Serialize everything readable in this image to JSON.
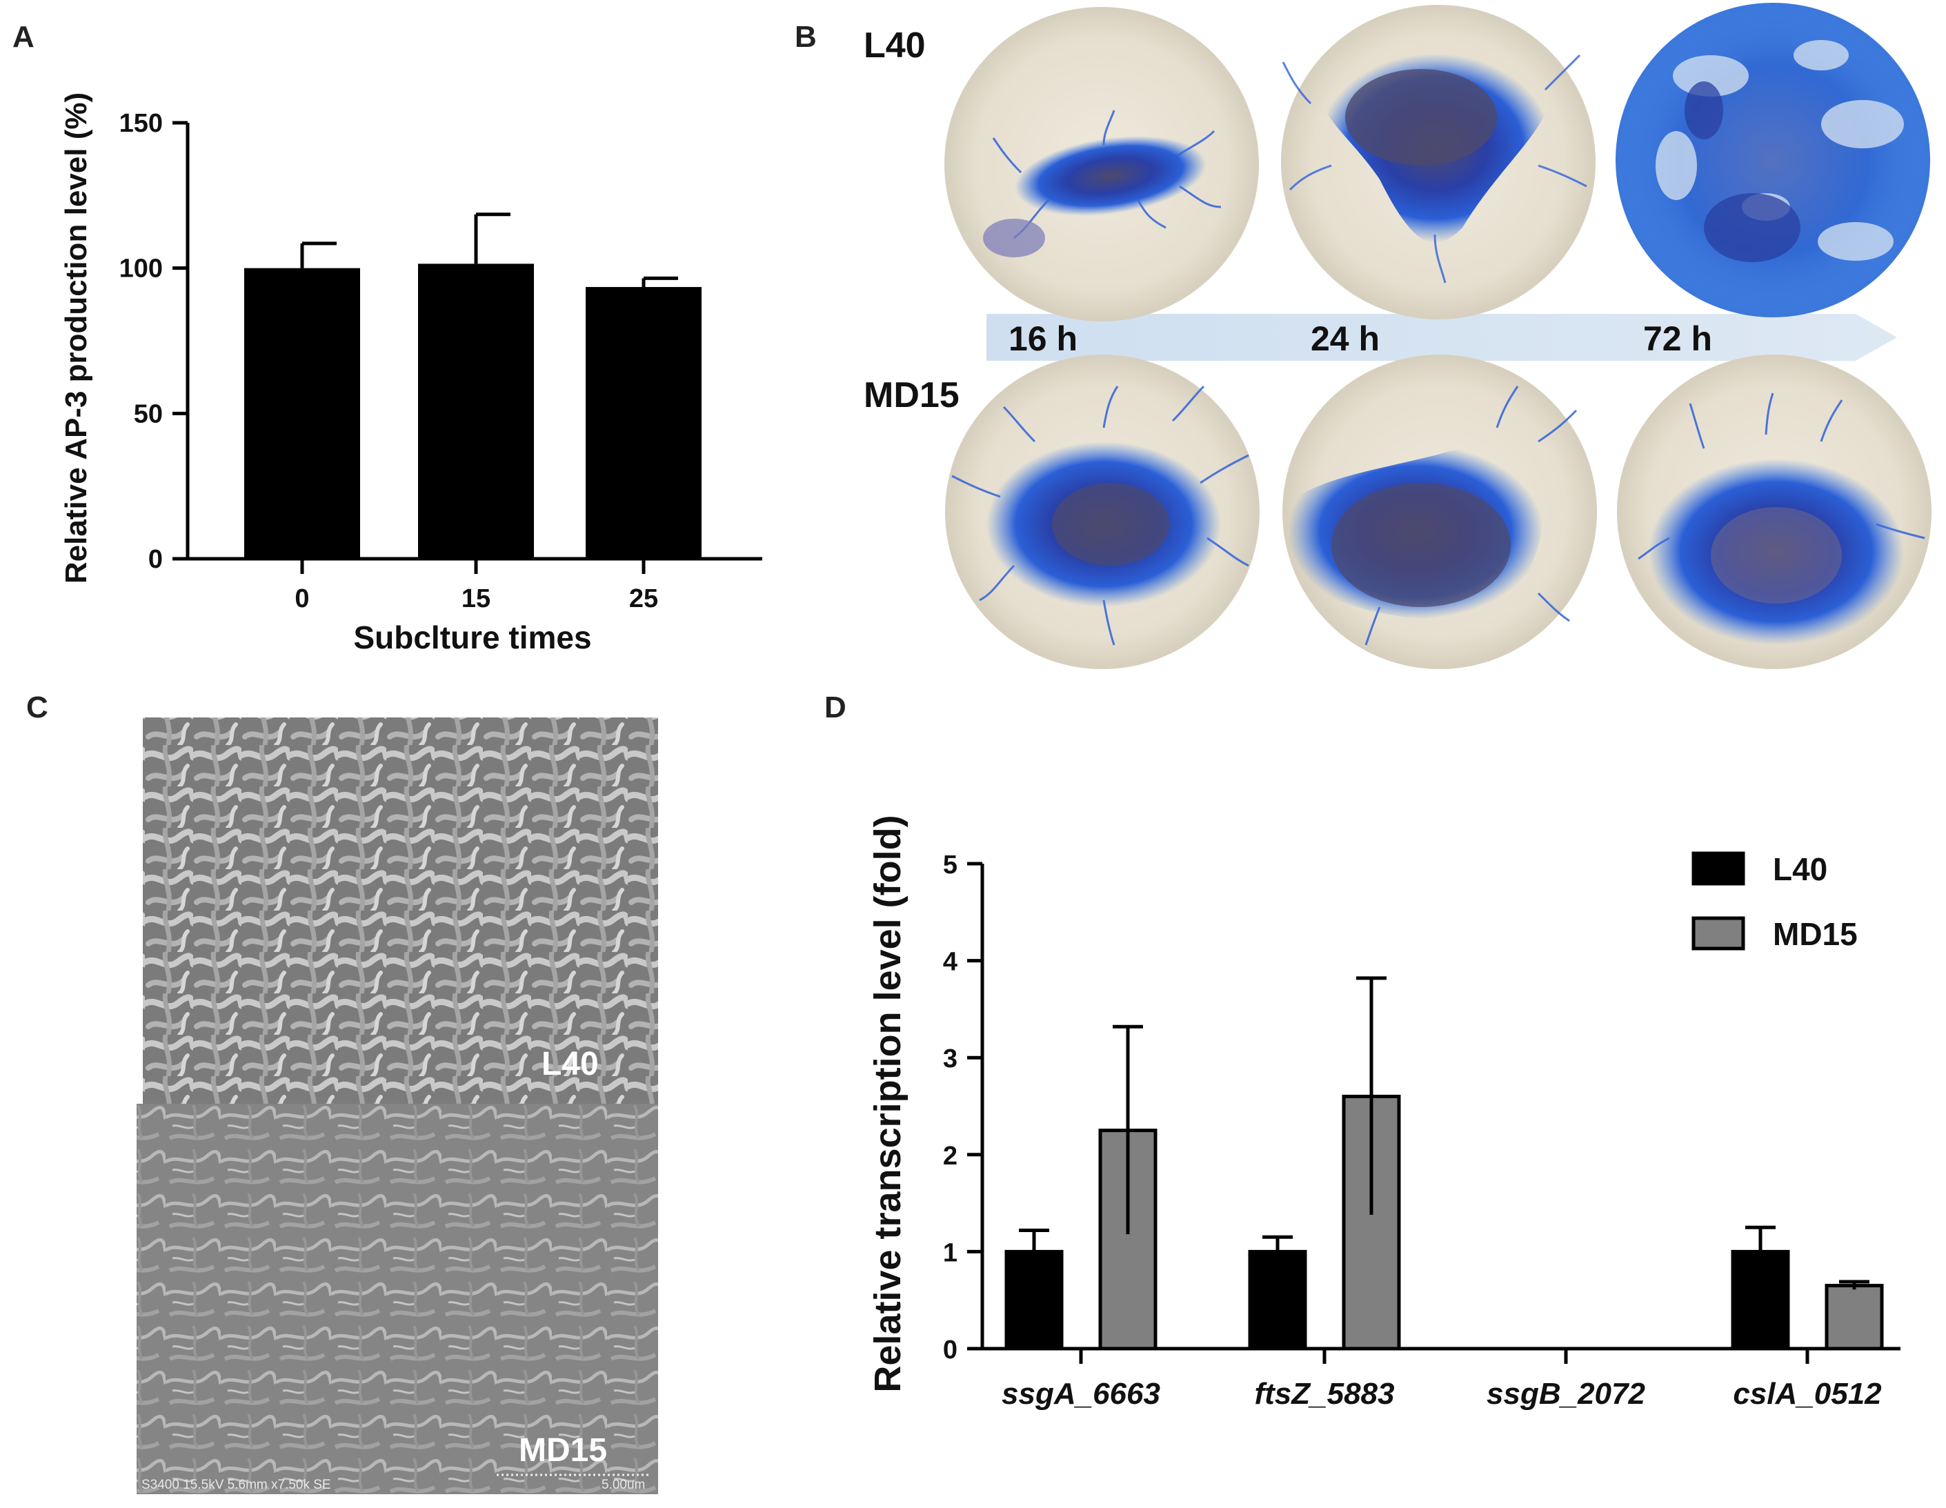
{
  "panels": {
    "A": "A",
    "B": "B",
    "C": "C",
    "D": "D"
  },
  "chart_data": [
    {
      "type": "bar",
      "panel": "A",
      "categories": [
        "0",
        "15",
        "25"
      ],
      "values": [
        100,
        101.5,
        93.5
      ],
      "errors": [
        8.5,
        17,
        3
      ],
      "xlabel": "Subclture times",
      "ylabel": "Relative AP-3 production level (%)",
      "ylim": [
        0,
        150
      ],
      "yticks": [
        "0",
        "50",
        "100",
        "150"
      ],
      "bar_color": "#000000"
    },
    {
      "type": "bar",
      "panel": "D",
      "categories": [
        "ssgA_6663",
        "ftsZ_5883",
        "ssgB_2072",
        "cslA_0512"
      ],
      "series": [
        {
          "name": "L40",
          "values": [
            1.0,
            1.0,
            0,
            1.0
          ],
          "errors": [
            0.22,
            0.15,
            0,
            0.25
          ],
          "color": "#000000"
        },
        {
          "name": "MD15",
          "values": [
            2.25,
            2.6,
            0,
            0.65
          ],
          "errors": [
            1.07,
            1.22,
            0,
            0.04
          ],
          "color": "#808080"
        }
      ],
      "ylabel": "Relative transcription level (fold)",
      "ylim": [
        0,
        5
      ],
      "yticks": [
        "0",
        "1",
        "2",
        "3",
        "4",
        "5"
      ],
      "legend_position": "top-right"
    }
  ],
  "panelB": {
    "strains": [
      "L40",
      "MD15"
    ],
    "times": [
      "16 h",
      "24 h",
      "72 h"
    ]
  },
  "panelC": {
    "labels": [
      "L40",
      "MD15"
    ],
    "info": "S3400 15.5kV 5.6mm x7.50k SE",
    "scale": "5.00um"
  }
}
